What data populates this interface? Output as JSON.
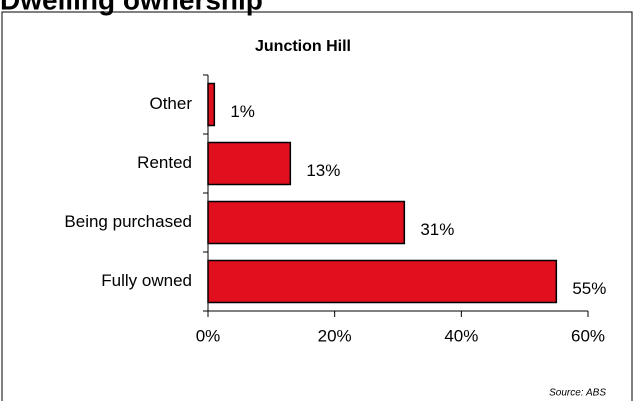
{
  "chart_data": {
    "type": "bar",
    "orientation": "horizontal",
    "title": "Dwelling ownership",
    "subtitle": "Junction Hill",
    "categories": [
      "Other",
      "Rented",
      "Being purchased",
      "Fully owned"
    ],
    "values": [
      1,
      13,
      31,
      55
    ],
    "value_labels": [
      "1%",
      "13%",
      "31%",
      "55%"
    ],
    "color": "#e0101e",
    "xlim": [
      0,
      60
    ],
    "xticks": [
      {
        "value": 0,
        "label": "0%"
      },
      {
        "value": 20,
        "label": "20%"
      },
      {
        "value": 40,
        "label": "40%"
      },
      {
        "value": 60,
        "label": "60%"
      }
    ],
    "annotation": "Source:  ABS"
  }
}
